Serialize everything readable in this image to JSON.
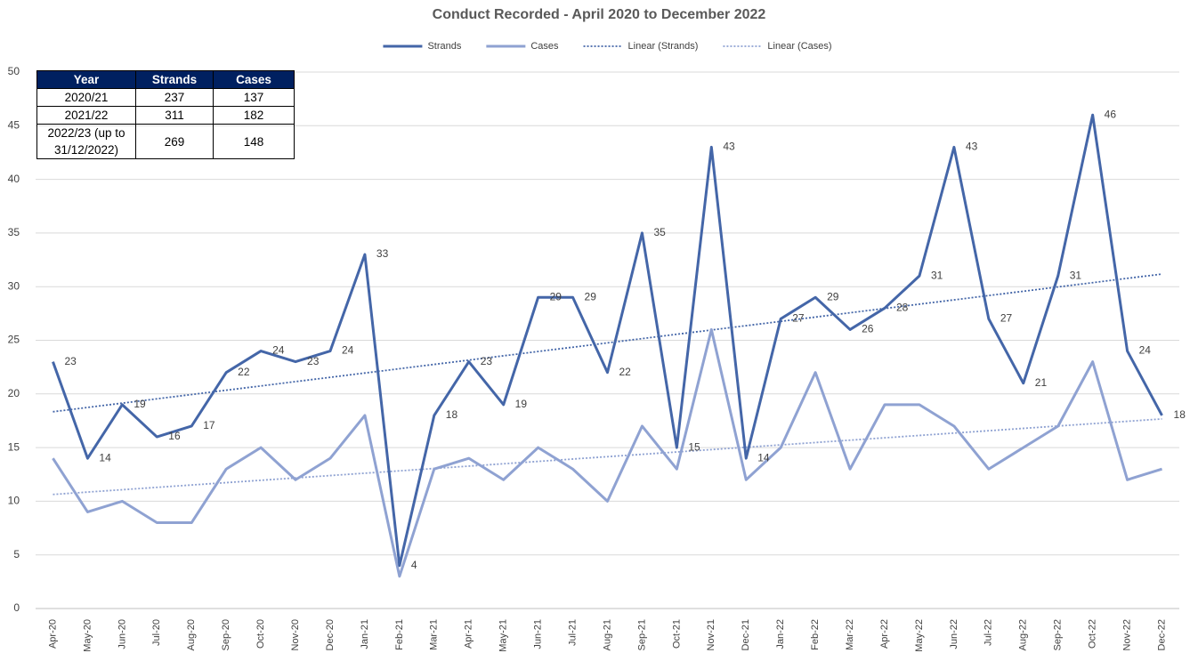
{
  "chart_data": {
    "type": "line",
    "title": "Conduct Recorded - April 2020 to December 2022",
    "categories": [
      "Apr-20",
      "May-20",
      "Jun-20",
      "Jul-20",
      "Aug-20",
      "Sep-20",
      "Oct-20",
      "Nov-20",
      "Dec-20",
      "Jan-21",
      "Feb-21",
      "Mar-21",
      "Apr-21",
      "May-21",
      "Jun-21",
      "Jul-21",
      "Aug-21",
      "Sep-21",
      "Oct-21",
      "Nov-21",
      "Dec-21",
      "Jan-22",
      "Feb-22",
      "Mar-22",
      "Apr-22",
      "May-22",
      "Jun-22",
      "Jul-22",
      "Aug-22",
      "Sep-22",
      "Oct-22",
      "Nov-22",
      "Dec-22"
    ],
    "series": [
      {
        "name": "Strands",
        "color": "#4466a8",
        "data_labels": true,
        "values": [
          23,
          14,
          19,
          16,
          17,
          22,
          24,
          23,
          24,
          33,
          4,
          18,
          23,
          19,
          29,
          29,
          22,
          35,
          15,
          43,
          14,
          27,
          29,
          26,
          28,
          31,
          43,
          27,
          21,
          31,
          46,
          24,
          18
        ]
      },
      {
        "name": "Cases",
        "color": "#8fa2d2",
        "data_labels": false,
        "values": [
          14,
          9,
          10,
          8,
          8,
          13,
          15,
          12,
          14,
          18,
          3,
          13,
          14,
          12,
          15,
          13,
          10,
          17,
          13,
          26,
          12,
          15,
          22,
          13,
          19,
          19,
          17,
          13,
          15,
          17,
          23,
          12,
          13
        ]
      }
    ],
    "trendlines": [
      {
        "name": "Linear (Strands)",
        "of": "Strands",
        "type": "linear",
        "color": "#4466a8"
      },
      {
        "name": "Linear (Cases)",
        "of": "Cases",
        "type": "linear",
        "color": "#8fa2d2"
      }
    ],
    "ylim": [
      0,
      50
    ],
    "yticks": [
      0,
      5,
      10,
      15,
      20,
      25,
      30,
      35,
      40,
      45,
      50
    ],
    "grid": true,
    "legend": "top"
  },
  "table": {
    "columns": [
      "Year",
      "Strands",
      "Cases"
    ],
    "rows": [
      [
        "2020/21",
        237,
        137
      ],
      [
        "2021/22",
        311,
        182
      ],
      [
        "2022/23 (up to 31/12/2022)",
        269,
        148
      ]
    ]
  }
}
